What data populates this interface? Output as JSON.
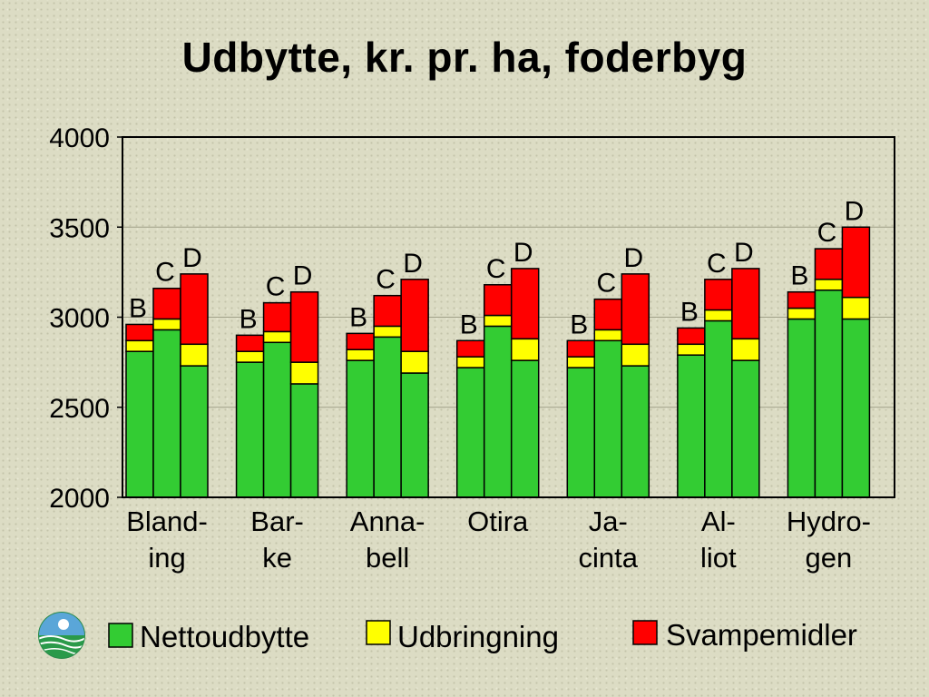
{
  "title": "Udbytte, kr. pr. ha, foderbyg",
  "colors": {
    "nettoudbytte": "#33cc33",
    "udbringning": "#ffff00",
    "svampemidler": "#ff0000",
    "outline": "#000000"
  },
  "legend": [
    {
      "key": "nettoudbytte",
      "label": "Nettoudbytte"
    },
    {
      "key": "udbringning",
      "label": "Udbringning"
    },
    {
      "key": "svampemidler",
      "label": "Svampemidler"
    }
  ],
  "logo": {
    "icon": "circular-landscape-logo"
  },
  "chart_data": {
    "type": "bar",
    "stacked": true,
    "title": "Udbytte, kr. pr. ha, foderbyg",
    "ylim": [
      2000,
      4000
    ],
    "yticks": [
      2000,
      2500,
      3000,
      3500,
      4000
    ],
    "grid": true,
    "legend_position": "bottom",
    "series_names": [
      "Nettoudbytte",
      "Udbringning",
      "Svampemidler"
    ],
    "categories": [
      {
        "label": [
          "Bland-",
          "ing"
        ],
        "bars": [
          {
            "letter": "B",
            "values": [
              2810,
              60,
              90
            ]
          },
          {
            "letter": "C",
            "values": [
              2930,
              60,
              170
            ]
          },
          {
            "letter": "D",
            "values": [
              2730,
              120,
              390
            ]
          }
        ]
      },
      {
        "label": [
          "Bar-",
          "ke"
        ],
        "bars": [
          {
            "letter": "B",
            "values": [
              2750,
              60,
              90
            ]
          },
          {
            "letter": "C",
            "values": [
              2860,
              60,
              160
            ]
          },
          {
            "letter": "D",
            "values": [
              2630,
              120,
              390
            ]
          }
        ]
      },
      {
        "label": [
          "Anna-",
          "bell"
        ],
        "bars": [
          {
            "letter": "B",
            "values": [
              2760,
              60,
              90
            ]
          },
          {
            "letter": "C",
            "values": [
              2890,
              60,
              170
            ]
          },
          {
            "letter": "D",
            "values": [
              2690,
              120,
              400
            ]
          }
        ]
      },
      {
        "label": [
          "Otira"
        ],
        "bars": [
          {
            "letter": "B",
            "values": [
              2720,
              60,
              90
            ]
          },
          {
            "letter": "C",
            "values": [
              2950,
              60,
              170
            ]
          },
          {
            "letter": "D",
            "values": [
              2760,
              120,
              390
            ]
          }
        ]
      },
      {
        "label": [
          "Ja-",
          "cinta"
        ],
        "bars": [
          {
            "letter": "B",
            "values": [
              2720,
              60,
              90
            ]
          },
          {
            "letter": "C",
            "values": [
              2870,
              60,
              170
            ]
          },
          {
            "letter": "D",
            "values": [
              2730,
              120,
              390
            ]
          }
        ]
      },
      {
        "label": [
          "Al-",
          "liot"
        ],
        "bars": [
          {
            "letter": "B",
            "values": [
              2790,
              60,
              90
            ]
          },
          {
            "letter": "C",
            "values": [
              2980,
              60,
              170
            ]
          },
          {
            "letter": "D",
            "values": [
              2760,
              120,
              390
            ]
          }
        ]
      },
      {
        "label": [
          "Hydro-",
          "gen"
        ],
        "bars": [
          {
            "letter": "B",
            "values": [
              2990,
              60,
              90
            ]
          },
          {
            "letter": "C",
            "values": [
              3150,
              60,
              170
            ]
          },
          {
            "letter": "D",
            "values": [
              2990,
              120,
              390
            ]
          }
        ]
      }
    ]
  }
}
